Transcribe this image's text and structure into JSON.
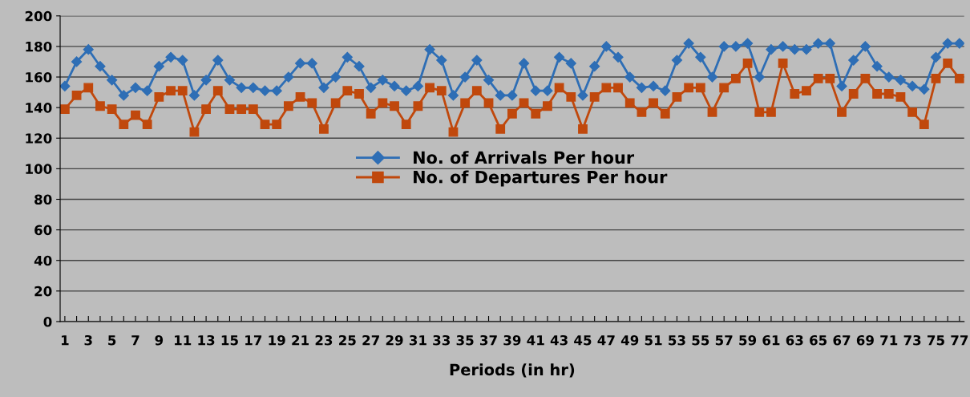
{
  "chart_data": {
    "type": "line",
    "xlabel": "Periods (in hr)",
    "categories": [
      "1",
      null,
      "3",
      null,
      "5",
      null,
      "7",
      null,
      "9",
      null,
      "11",
      null,
      "13",
      null,
      "15",
      null,
      "17",
      null,
      "19",
      null,
      "21",
      null,
      "23",
      null,
      "25",
      null,
      "27",
      null,
      "29",
      null,
      "31",
      null,
      "33",
      null,
      "35",
      null,
      "37",
      null,
      "39",
      null,
      "41",
      null,
      "43",
      null,
      "45",
      null,
      "47",
      null,
      "49",
      null,
      "51",
      null,
      "53",
      null,
      "55",
      null,
      "57",
      null,
      "59",
      null,
      "61",
      null,
      "63",
      null,
      "65",
      null,
      "67",
      null,
      "69",
      null,
      "71",
      null,
      "73",
      null,
      "75",
      null,
      "77"
    ],
    "series": [
      {
        "name": "No. of Arrivals Per hour",
        "color": "#2e6eb5",
        "marker": "diamond",
        "values": [
          154,
          170,
          178,
          167,
          158,
          148,
          153,
          151,
          167,
          173,
          171,
          148,
          158,
          171,
          158,
          153,
          153,
          151,
          151,
          160,
          169,
          169,
          153,
          160,
          173,
          167,
          153,
          158,
          154,
          151,
          154,
          178,
          171,
          148,
          160,
          171,
          158,
          148,
          148,
          169,
          151,
          151,
          173,
          169,
          148,
          167,
          180,
          173,
          160,
          153,
          154,
          151,
          171,
          182,
          173,
          160,
          180,
          180,
          182,
          160,
          178,
          180,
          178,
          178,
          182,
          182,
          154,
          171,
          180,
          167,
          160,
          158,
          154,
          152,
          173,
          182,
          182
        ]
      },
      {
        "name": "No. of Departures Per hour",
        "color": "#c0480c",
        "marker": "square",
        "values": [
          139,
          148,
          153,
          141,
          139,
          129,
          135,
          129,
          147,
          151,
          151,
          124,
          139,
          151,
          139,
          139,
          139,
          129,
          129,
          141,
          147,
          143,
          126,
          143,
          151,
          149,
          136,
          143,
          141,
          129,
          141,
          153,
          151,
          124,
          143,
          151,
          143,
          126,
          136,
          143,
          136,
          141,
          153,
          147,
          126,
          147,
          153,
          153,
          143,
          137,
          143,
          136,
          147,
          153,
          153,
          137,
          153,
          159,
          169,
          137,
          137,
          169,
          149,
          151,
          159,
          159,
          137,
          149,
          159,
          149,
          149,
          147,
          137,
          129,
          159,
          169,
          159
        ]
      }
    ],
    "ylim": [
      0,
      200
    ],
    "yticks": [
      0,
      20,
      40,
      60,
      80,
      100,
      120,
      140,
      160,
      180,
      200
    ],
    "grid": "y",
    "legend": "center",
    "line_style": "solid"
  }
}
